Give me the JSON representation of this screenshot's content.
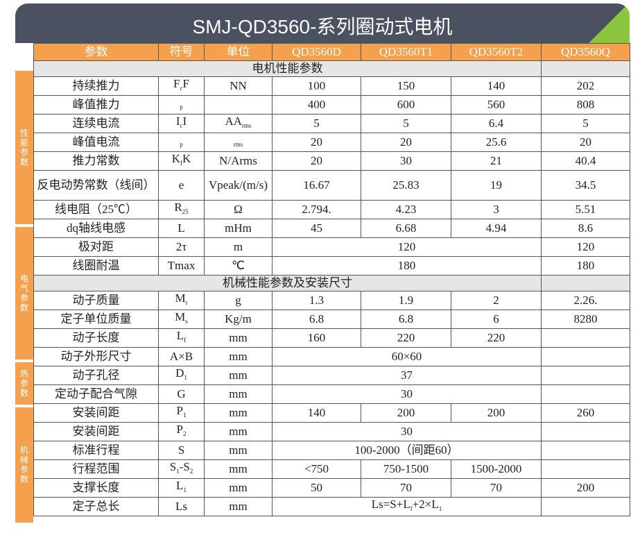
{
  "header": {
    "title": "SMJ-QD3560-系列圈动式电机"
  },
  "side_labels": [
    "性能参数",
    "电气参数",
    "热参数",
    "机械参数"
  ],
  "table": {
    "columns": [
      "参数",
      "符号",
      "单位",
      "QD3560D",
      "QD3560T1",
      "QD3560T2",
      "QD3560Q"
    ],
    "rows": [
      {
        "section": "电机性能参数"
      },
      {
        "name": "持续推力",
        "symbol": {
          "parts": [
            {
              "t": "F"
            },
            {
              "t": "c",
              "sub": true
            },
            {
              "t": "F"
            }
          ]
        },
        "unit": "NN",
        "values": [
          "100",
          "150",
          "140",
          "202"
        ]
      },
      {
        "name": "峰值推力",
        "symbol": {
          "parts": [
            {
              "t": "p",
              "sub": true
            }
          ]
        },
        "unit": null,
        "values": [
          "400",
          "600",
          "560",
          "808"
        ]
      },
      {
        "name": "连续电流",
        "symbol": {
          "parts": [
            {
              "t": "I"
            },
            {
              "t": "c",
              "sub": true
            },
            {
              "t": "I"
            }
          ]
        },
        "unit": {
          "parts": [
            {
              "t": "AA"
            },
            {
              "t": "rms",
              "sub": true
            }
          ]
        },
        "values": [
          "5",
          "5",
          "6.4",
          "5"
        ]
      },
      {
        "name": "峰值电流",
        "symbol": {
          "parts": [
            {
              "t": "p",
              "sub": true
            }
          ]
        },
        "unit": {
          "parts": [
            {
              "t": "rms",
              "sub": true
            }
          ]
        },
        "values": [
          "20",
          "20",
          "25.6",
          "20"
        ]
      },
      {
        "name": "推力常数",
        "symbol": {
          "parts": [
            {
              "t": "K"
            },
            {
              "t": "f",
              "sub": true
            },
            {
              "t": "K"
            }
          ]
        },
        "unit": "N/Arms",
        "values": [
          "20",
          "30",
          "21",
          "40.4"
        ]
      },
      {
        "name": "反电动势常数（线间）",
        "symbol": "e",
        "unit": "Vpeak/(m/s)",
        "values": [
          "16.67",
          "25.83",
          "19",
          "34.5"
        ],
        "tall": true
      },
      {
        "name": "线电阻（25℃）",
        "symbol": {
          "parts": [
            {
              "t": "R"
            },
            {
              "t": "25",
              "sub": true
            }
          ]
        },
        "unit": "Ω",
        "values": [
          "2.794.",
          "4.23",
          "3",
          "5.51"
        ]
      },
      {
        "name": "dq轴线电感",
        "symbol": "L",
        "unit": "mHm",
        "values": [
          "45",
          "6.68",
          "4.94",
          "8.6"
        ]
      },
      {
        "name": "极对距",
        "symbol": "2τ",
        "unit": "m",
        "values": [
          {
            "text": "120",
            "span": 3
          },
          "120"
        ]
      },
      {
        "name": "线圈耐温",
        "symbol": "Tmax",
        "unit": "℃",
        "values": [
          {
            "text": "180",
            "span": 3
          },
          "180"
        ]
      },
      {
        "section": "机械性能参数及安装尺寸"
      },
      {
        "name": "动子质量",
        "symbol": {
          "parts": [
            {
              "t": "M"
            },
            {
              "t": "r",
              "sub": true
            }
          ]
        },
        "unit": "g",
        "values": [
          "1.3",
          "1.9",
          "2",
          "2.26."
        ]
      },
      {
        "name": "定子单位质量",
        "symbol": {
          "parts": [
            {
              "t": "M"
            },
            {
              "t": "s",
              "sub": true
            }
          ]
        },
        "unit": "Kg/m",
        "values": [
          "6.8",
          "6.8",
          "6",
          "8280"
        ]
      },
      {
        "name": "动子长度",
        "symbol": {
          "parts": [
            {
              "t": "L"
            },
            {
              "t": "f",
              "sub": true
            }
          ]
        },
        "unit": "mm",
        "values": [
          "160",
          "220",
          "220",
          null
        ]
      },
      {
        "name": "动子外形尺寸",
        "symbol": "A×B",
        "unit": "mm",
        "values": [
          {
            "text": "60×60",
            "span": 3
          },
          null
        ]
      },
      {
        "name": "动子孔径",
        "symbol": {
          "parts": [
            {
              "t": "D"
            },
            {
              "t": "1",
              "sub": true
            }
          ]
        },
        "unit": "mm",
        "values": [
          {
            "text": "37",
            "span": 3
          },
          null
        ]
      },
      {
        "name": "定动子配合气隙",
        "symbol": "G",
        "unit": "mm",
        "values": [
          {
            "text": "30",
            "span": 3
          },
          null
        ]
      },
      {
        "name": "安装间距",
        "symbol": {
          "parts": [
            {
              "t": "P"
            },
            {
              "t": "1",
              "sub": true
            }
          ]
        },
        "unit": "mm",
        "values": [
          "140",
          "200",
          "200",
          "260"
        ]
      },
      {
        "name": "安装间距",
        "symbol": {
          "parts": [
            {
              "t": "P"
            },
            {
              "t": "2",
              "sub": true
            }
          ]
        },
        "unit": "mm",
        "values": [
          {
            "text": "30",
            "span": 3
          },
          null
        ]
      },
      {
        "name": "标准行程",
        "symbol": "S",
        "unit": "mm",
        "values": [
          {
            "text": "100-2000（间距60）",
            "span": 3
          },
          null
        ]
      },
      {
        "name": "行程范围",
        "symbol": {
          "parts": [
            {
              "t": "S"
            },
            {
              "t": "1",
              "sub": true
            },
            {
              "t": "-S"
            },
            {
              "t": "2",
              "sub": true
            }
          ]
        },
        "unit": "mm",
        "values": [
          "<750",
          "750-1500",
          "1500-2000",
          null
        ]
      },
      {
        "name": "支撑长度",
        "symbol": {
          "parts": [
            {
              "t": "L"
            },
            {
              "t": "1",
              "sub": true
            }
          ]
        },
        "unit": "mm",
        "values": [
          "50",
          "70",
          "70",
          "200"
        ]
      },
      {
        "name": "定子总长",
        "symbol": "Ls",
        "unit": "mm",
        "values": [
          {
            "parts": [
              {
                "t": "Ls=S+L"
              },
              {
                "t": "f",
                "sub": true
              },
              {
                "t": "+2×L"
              },
              {
                "t": "1",
                "sub": true
              }
            ],
            "span": 3
          },
          null
        ]
      }
    ]
  }
}
